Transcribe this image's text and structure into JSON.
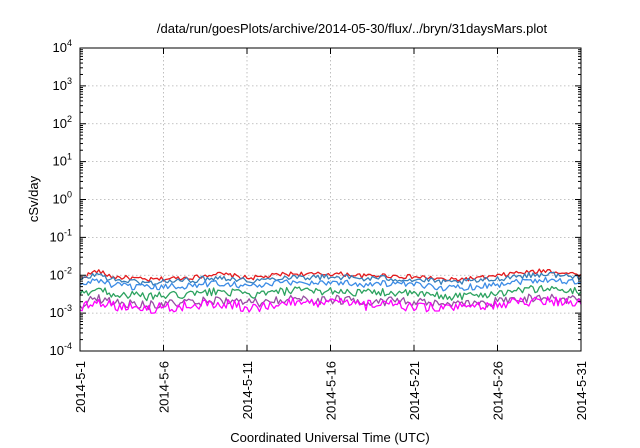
{
  "chart_data": {
    "type": "line",
    "title": "/data/run/goesPlots/archive/2014-05-30/flux/../bryn/31daysMars.plot",
    "xlabel": "Coordinated Universal Time (UTC)",
    "ylabel": "cSv/day",
    "yscale": "log",
    "ylim": [
      0.0001,
      10000
    ],
    "yticks": [
      {
        "base": "10",
        "exp": "-4",
        "value": 0.0001
      },
      {
        "base": "10",
        "exp": "-3",
        "value": 0.001
      },
      {
        "base": "10",
        "exp": "-2",
        "value": 0.01
      },
      {
        "base": "10",
        "exp": "-1",
        "value": 0.1
      },
      {
        "base": "10",
        "exp": "0",
        "value": 1
      },
      {
        "base": "10",
        "exp": "1",
        "value": 10
      },
      {
        "base": "10",
        "exp": "2",
        "value": 100
      },
      {
        "base": "10",
        "exp": "3",
        "value": 1000
      },
      {
        "base": "10",
        "exp": "4",
        "value": 10000
      }
    ],
    "xlim": [
      "2014-05-01",
      "2014-05-31"
    ],
    "xtick_labels": [
      "2014-5-1",
      "2014-5-6",
      "2014-5-11",
      "2014-5-16",
      "2014-5-21",
      "2014-5-26",
      "2014-5-31"
    ],
    "xtick_dates": [
      "2014-05-01",
      "2014-05-06",
      "2014-05-11",
      "2014-05-16",
      "2014-05-21",
      "2014-05-26",
      "2014-05-31"
    ],
    "grid": true,
    "x": [
      "2014-05-01",
      "2014-05-02",
      "2014-05-03",
      "2014-05-04",
      "2014-05-05",
      "2014-05-06",
      "2014-05-07",
      "2014-05-08",
      "2014-05-09",
      "2014-05-10",
      "2014-05-11",
      "2014-05-12",
      "2014-05-13",
      "2014-05-14",
      "2014-05-15",
      "2014-05-16",
      "2014-05-17",
      "2014-05-18",
      "2014-05-19",
      "2014-05-20",
      "2014-05-21",
      "2014-05-22",
      "2014-05-23",
      "2014-05-24",
      "2014-05-25",
      "2014-05-26",
      "2014-05-27",
      "2014-05-28",
      "2014-05-29",
      "2014-05-30",
      "2014-05-31"
    ],
    "series": [
      {
        "color": "#e41a1c",
        "values": [
          0.0085,
          0.013,
          0.009,
          0.0085,
          0.0075,
          0.008,
          0.0085,
          0.009,
          0.011,
          0.01,
          0.0085,
          0.009,
          0.0105,
          0.011,
          0.0105,
          0.011,
          0.0105,
          0.0095,
          0.01,
          0.0095,
          0.009,
          0.0085,
          0.0075,
          0.008,
          0.0085,
          0.0095,
          0.0115,
          0.012,
          0.0135,
          0.0115,
          0.0105
        ]
      },
      {
        "color": "#377eb8",
        "values": [
          0.0072,
          0.011,
          0.0075,
          0.007,
          0.0062,
          0.0068,
          0.0072,
          0.0076,
          0.0088,
          0.0085,
          0.0072,
          0.0075,
          0.0088,
          0.0092,
          0.0088,
          0.0092,
          0.0088,
          0.008,
          0.0085,
          0.008,
          0.0076,
          0.0072,
          0.0063,
          0.0068,
          0.0072,
          0.008,
          0.0096,
          0.01,
          0.011,
          0.0096,
          0.0088
        ]
      },
      {
        "color": "#3c8ce6",
        "values": [
          0.0052,
          0.0078,
          0.0054,
          0.005,
          0.0046,
          0.0049,
          0.0052,
          0.0055,
          0.0063,
          0.0061,
          0.0052,
          0.0054,
          0.0063,
          0.0066,
          0.0063,
          0.0066,
          0.0063,
          0.0058,
          0.0061,
          0.0058,
          0.0055,
          0.0052,
          0.0046,
          0.0049,
          0.0052,
          0.0058,
          0.0069,
          0.0072,
          0.0079,
          0.0069,
          0.0063
        ]
      },
      {
        "color": "#2ca25f",
        "values": [
          0.003,
          0.0045,
          0.0032,
          0.003,
          0.0027,
          0.0029,
          0.003,
          0.0032,
          0.0037,
          0.0036,
          0.003,
          0.0032,
          0.0037,
          0.0039,
          0.0037,
          0.0039,
          0.0037,
          0.0034,
          0.0036,
          0.0034,
          0.0032,
          0.003,
          0.0027,
          0.0029,
          0.003,
          0.0034,
          0.004,
          0.0042,
          0.0046,
          0.004,
          0.0037
        ]
      },
      {
        "color": "#984ea3",
        "values": [
          0.0016,
          0.0026,
          0.0019,
          0.0018,
          0.0016,
          0.0017,
          0.0018,
          0.0019,
          0.0022,
          0.0021,
          0.0018,
          0.0019,
          0.0022,
          0.0023,
          0.0022,
          0.0023,
          0.0022,
          0.002,
          0.0021,
          0.002,
          0.0019,
          0.0018,
          0.0016,
          0.0017,
          0.0018,
          0.002,
          0.0024,
          0.0025,
          0.0027,
          0.0024,
          0.0021
        ]
      },
      {
        "color": "#ff00ff",
        "values": [
          0.0013,
          0.0022,
          0.0016,
          0.0015,
          0.0013,
          0.0014,
          0.0015,
          0.0016,
          0.0018,
          0.0017,
          0.0014,
          0.0015,
          0.0018,
          0.0019,
          0.0018,
          0.0019,
          0.0018,
          0.0016,
          0.0017,
          0.0016,
          0.0015,
          0.0014,
          0.0013,
          0.0014,
          0.0015,
          0.0016,
          0.002,
          0.0021,
          0.0022,
          0.002,
          0.0017
        ]
      }
    ]
  }
}
